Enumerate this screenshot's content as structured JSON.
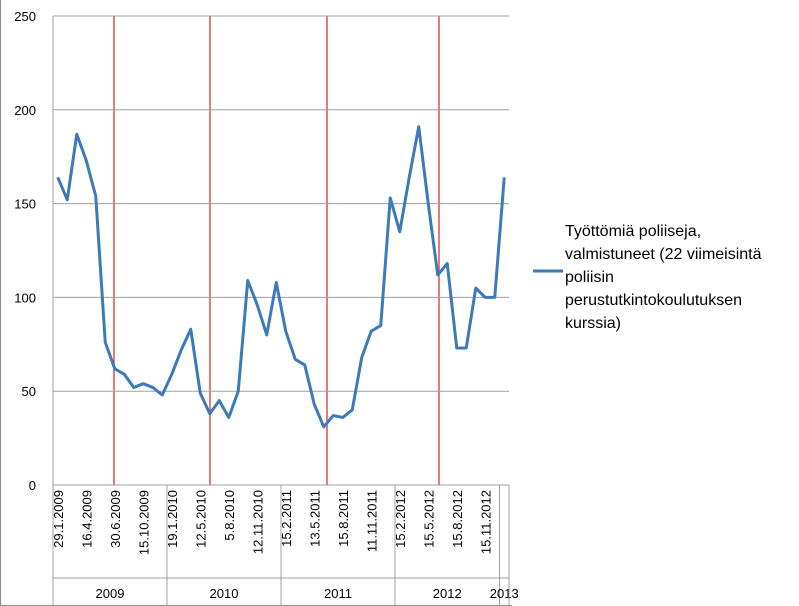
{
  "chart_data": {
    "type": "line",
    "categories": [
      "29.1.2009",
      null,
      null,
      "16.4.2009",
      null,
      null,
      "30.6.2009",
      null,
      null,
      "15.10.2009",
      null,
      null,
      "19.1.2010",
      null,
      null,
      "12.5.2010",
      null,
      null,
      "5.8.2010",
      null,
      null,
      "12.11.2010",
      null,
      null,
      "15.2.2011",
      null,
      null,
      "13.5.2011",
      null,
      null,
      "15.8.2011",
      null,
      null,
      "11.11.2011",
      null,
      null,
      "15.2.2012",
      null,
      null,
      "15.5.2012",
      null,
      null,
      "15.8.2012",
      null,
      null,
      "15.11.2012",
      null,
      null
    ],
    "groups": [
      {
        "label": "2009",
        "count": 12
      },
      {
        "label": "2010",
        "count": 12
      },
      {
        "label": "2011",
        "count": 12
      },
      {
        "label": "2012",
        "count": 11
      },
      {
        "label": "2013",
        "count": 1
      }
    ],
    "series": [
      {
        "name": "Työttömiä poliiseja, valmistuneet (22 viimeisintä poliisin perustutkintokoulutuksen kurssia)",
        "color": "#3d7ab8",
        "values": [
          164,
          152,
          187,
          173,
          154,
          76,
          62,
          59,
          52,
          54,
          52,
          48,
          59,
          72,
          83,
          49,
          38,
          45,
          36,
          50,
          109,
          96,
          80,
          108,
          82,
          67,
          64,
          43,
          31,
          37,
          36,
          40,
          68,
          82,
          85,
          153,
          135,
          164,
          191,
          150,
          112,
          118,
          73,
          73,
          105,
          100,
          100,
          164
        ]
      }
    ],
    "ylim": [
      0,
      250
    ],
    "yticks": [
      0,
      50,
      100,
      150,
      200,
      250
    ],
    "grid": true
  }
}
